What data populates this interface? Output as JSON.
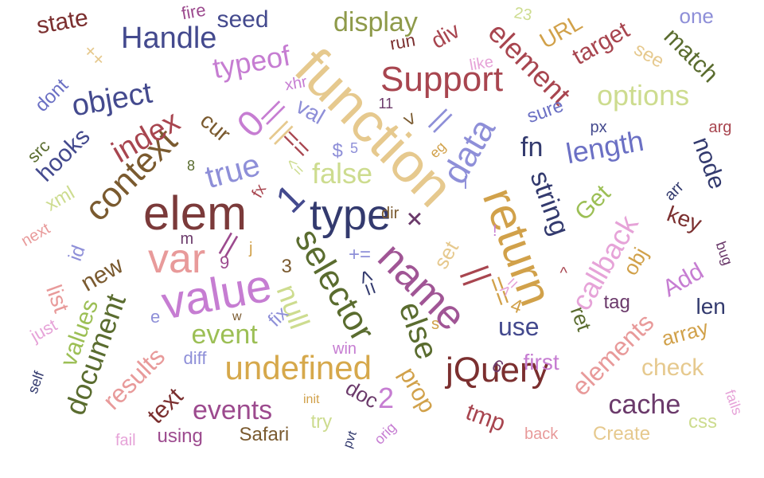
{
  "words": [
    {
      "text": "function",
      "color": "#e6c98e"
    },
    {
      "text": "elem",
      "color": "#7b3a3a"
    },
    {
      "text": "type",
      "color": "#333a6e"
    },
    {
      "text": "name",
      "color": "#a05595"
    },
    {
      "text": "return",
      "color": "#d1a14a"
    },
    {
      "text": "value",
      "color": "#c67dd2"
    },
    {
      "text": "var",
      "color": "#e89a9a"
    },
    {
      "text": "selector",
      "color": "#5a6c2f"
    },
    {
      "text": "jQuery",
      "color": "#7b2f2f"
    },
    {
      "text": "undefined",
      "color": "#d6a84b"
    },
    {
      "text": "Support",
      "color": "#a8454f"
    },
    {
      "text": "data",
      "color": "#8e8fd8"
    },
    {
      "text": "context",
      "color": "#7a5a2f"
    },
    {
      "text": "else",
      "color": "#5a6c2f"
    },
    {
      "text": "true",
      "color": "#8e8fd8"
    },
    {
      "text": "null",
      "color": "#cddc8f"
    },
    {
      "text": "document",
      "color": "#5a6c2f"
    },
    {
      "text": "Handle",
      "color": "#444a8e"
    },
    {
      "text": "display",
      "color": "#8e9a4a"
    },
    {
      "text": "object",
      "color": "#444a8e"
    },
    {
      "text": "element",
      "color": "#a8454f"
    },
    {
      "text": "options",
      "color": "#cddc8f"
    },
    {
      "text": "length",
      "color": "#6b70c4"
    },
    {
      "text": "string",
      "color": "#333a6e"
    },
    {
      "text": "callback",
      "color": "#e6a3d8"
    },
    {
      "text": "index",
      "color": "#a8454f"
    },
    {
      "text": "typeof",
      "color": "#c67dd2"
    },
    {
      "text": "event",
      "color": "#9cbf55"
    },
    {
      "text": "events",
      "color": "#9c4a8e"
    },
    {
      "text": "results",
      "color": "#e89a9a"
    },
    {
      "text": "elements",
      "color": "#e89a9a"
    },
    {
      "text": "false",
      "color": "#cddc8f"
    },
    {
      "text": "prop",
      "color": "#d1a14a"
    },
    {
      "text": "cache",
      "color": "#6b3a6b"
    },
    {
      "text": "match",
      "color": "#5a6c2f"
    },
    {
      "text": "target",
      "color": "#a8454f"
    },
    {
      "text": "state",
      "color": "#7b2f2f"
    },
    {
      "text": "seed",
      "color": "#444a8e"
    },
    {
      "text": "hooks",
      "color": "#444a8e"
    },
    {
      "text": "values",
      "color": "#9cbf55"
    },
    {
      "text": "Get",
      "color": "#9cbf55"
    },
    {
      "text": "node",
      "color": "#333a6e"
    },
    {
      "text": "check",
      "color": "#e6c98e"
    },
    {
      "text": "new",
      "color": "#7a5a2f"
    },
    {
      "text": "Add",
      "color": "#c67dd2"
    },
    {
      "text": "use",
      "color": "#444a8e"
    },
    {
      "text": "first",
      "color": "#c67dd2"
    },
    {
      "text": "key",
      "color": "#7b2f2f"
    },
    {
      "text": "len",
      "color": "#333a6e"
    },
    {
      "text": "text",
      "color": "#7b2f2f"
    },
    {
      "text": "array",
      "color": "#d1a14a"
    },
    {
      "text": "tmp",
      "color": "#a8454f"
    },
    {
      "text": "div",
      "color": "#a8454f"
    },
    {
      "text": "URL",
      "color": "#d1a14a"
    },
    {
      "text": "fn",
      "color": "#333a6e"
    },
    {
      "text": "obj",
      "color": "#d1a14a"
    },
    {
      "text": "doc",
      "color": "#6b3a6b"
    },
    {
      "text": "list",
      "color": "#e89a9a"
    },
    {
      "text": "ret",
      "color": "#5a6c2f"
    },
    {
      "text": "set",
      "color": "#e6c98e"
    },
    {
      "text": "cur",
      "color": "#7a5a2f"
    },
    {
      "text": "val",
      "color": "#8e8fd8"
    },
    {
      "text": "one",
      "color": "#8e8fd8"
    },
    {
      "text": "see",
      "color": "#e6c98e"
    },
    {
      "text": "Safari",
      "color": "#7a5a2f"
    },
    {
      "text": "Create",
      "color": "#e6c98e"
    },
    {
      "text": "css",
      "color": "#cddc8f"
    },
    {
      "text": "using",
      "color": "#9c4a8e"
    },
    {
      "text": "try",
      "color": "#cddc8f"
    },
    {
      "text": "fix",
      "color": "#8e8fd8"
    },
    {
      "text": "tag",
      "color": "#6b3a6b"
    },
    {
      "text": "id",
      "color": "#8e8fd8"
    },
    {
      "text": "xml",
      "color": "#cddc8f"
    },
    {
      "text": "dont",
      "color": "#6b70c4"
    },
    {
      "text": "src",
      "color": "#5a6c2f"
    },
    {
      "text": "just",
      "color": "#e6a3d8"
    },
    {
      "text": "diff",
      "color": "#8e8fd8"
    },
    {
      "text": "fail",
      "color": "#e6a3d8"
    },
    {
      "text": "self",
      "color": "#333a6e"
    },
    {
      "text": "back",
      "color": "#e89a9a"
    },
    {
      "text": "fails",
      "color": "#e6a3d8"
    },
    {
      "text": "win",
      "color": "#c67dd2"
    },
    {
      "text": "orig",
      "color": "#c67dd2"
    },
    {
      "text": "pvt",
      "color": "#333a6e"
    },
    {
      "text": "init",
      "color": "#d1a14a"
    },
    {
      "text": "run",
      "color": "#7b2f2f"
    },
    {
      "text": "like",
      "color": "#e6a3d8"
    },
    {
      "text": "sure",
      "color": "#6b70c4"
    },
    {
      "text": "px",
      "color": "#444a8e"
    },
    {
      "text": "arg",
      "color": "#a8454f"
    },
    {
      "text": "arr",
      "color": "#333a6e"
    },
    {
      "text": "bug",
      "color": "#6b3a6b"
    },
    {
      "text": "next",
      "color": "#e89a9a"
    },
    {
      "text": "fire",
      "color": "#9c4a8e"
    },
    {
      "text": "xhr",
      "color": "#c67dd2"
    },
    {
      "text": "dir",
      "color": "#7a5a2f"
    },
    {
      "text": "eg",
      "color": "#d1a14a"
    },
    {
      "text": "0",
      "color": "#c67dd2"
    },
    {
      "text": "1",
      "color": "#444a8e"
    },
    {
      "text": "2",
      "color": "#c67dd2"
    },
    {
      "text": "3",
      "color": "#7a5a2f"
    },
    {
      "text": "4",
      "color": "#d1a14a"
    },
    {
      "text": "5",
      "color": "#8e8fd8"
    },
    {
      "text": "6",
      "color": "#6b3a6b"
    },
    {
      "text": "8",
      "color": "#5a6c2f"
    },
    {
      "text": "9",
      "color": "#9c4a8e"
    },
    {
      "text": "11",
      "color": "#6b3a6b"
    },
    {
      "text": "23",
      "color": "#cddc8f"
    },
    {
      "text": "m",
      "color": "#6b3a6b"
    },
    {
      "text": "w",
      "color": "#7a5a2f"
    },
    {
      "text": "e",
      "color": "#8e8fd8"
    },
    {
      "text": "s",
      "color": "#d1a14a"
    },
    {
      "text": "j",
      "color": "#d1a14a"
    },
    {
      "text": "fx",
      "color": "#a8454f"
    },
    {
      "text": "$",
      "color": "#8e8fd8"
    },
    {
      "text": "++",
      "color": "#e6c98e"
    },
    {
      "text": "+=",
      "color": "#8e8fd8"
    },
    {
      "text": "+",
      "color": "#6b3a6b"
    },
    {
      "text": "||",
      "color": "#e6c98e"
    },
    {
      "text": "||",
      "color": "#c67dd2"
    },
    {
      "text": "||",
      "color": "#8e8fd8"
    },
    {
      "text": "||",
      "color": "#a8454f"
    },
    {
      "text": "||",
      "color": "#9c4a8e"
    },
    {
      "text": "==",
      "color": "#a8454f"
    },
    {
      "text": "==",
      "color": "#d1a14a"
    },
    {
      "text": "<=",
      "color": "#cddc8f"
    },
    {
      "text": "<=",
      "color": "#333a6e"
    },
    {
      "text": ">=",
      "color": "#e6a3d8"
    },
    {
      "text": ">",
      "color": "#7a5a2f"
    },
    {
      "text": "^",
      "color": "#a8454f"
    },
    {
      "text": "!",
      "color": "#c67dd2"
    },
    {
      "text": "i",
      "color": "#8e8fd8"
    }
  ]
}
